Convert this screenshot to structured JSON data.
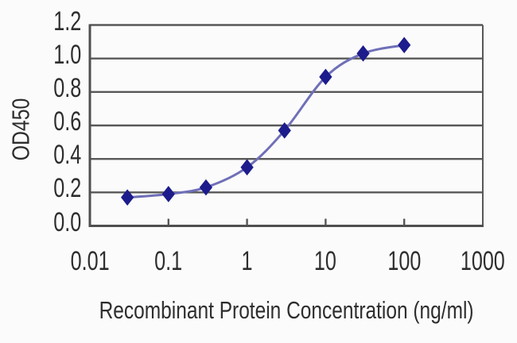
{
  "chart_data": {
    "type": "line",
    "x_scale": "log",
    "x": [
      0.03,
      0.1,
      0.3,
      1,
      3,
      10,
      30,
      100
    ],
    "y": [
      0.17,
      0.19,
      0.23,
      0.35,
      0.57,
      0.89,
      1.03,
      1.08
    ],
    "title": "",
    "xlabel": "Recombinant Protein Concentration (ng/ml)",
    "ylabel": "OD450",
    "xlim": [
      0.01,
      1000
    ],
    "ylim": [
      0,
      1.2
    ],
    "x_ticks": [
      "0.01",
      "0.1",
      "1",
      "10",
      "100",
      "1000"
    ],
    "x_tick_values": [
      0.01,
      0.1,
      1,
      10,
      100,
      1000
    ],
    "y_ticks": [
      "0.0",
      "0.2",
      "0.4",
      "0.6",
      "0.8",
      "1.0",
      "1.2"
    ],
    "y_tick_values": [
      0,
      0.2,
      0.4,
      0.6,
      0.8,
      1.0,
      1.2
    ],
    "grid": true,
    "legend": false,
    "marker": "diamond",
    "colors": {
      "line": "#6f6fb8",
      "marker": "#1c1c8c",
      "grid": "#585858",
      "axis": "#4f4f4f",
      "text": "#2e2e2e"
    }
  }
}
